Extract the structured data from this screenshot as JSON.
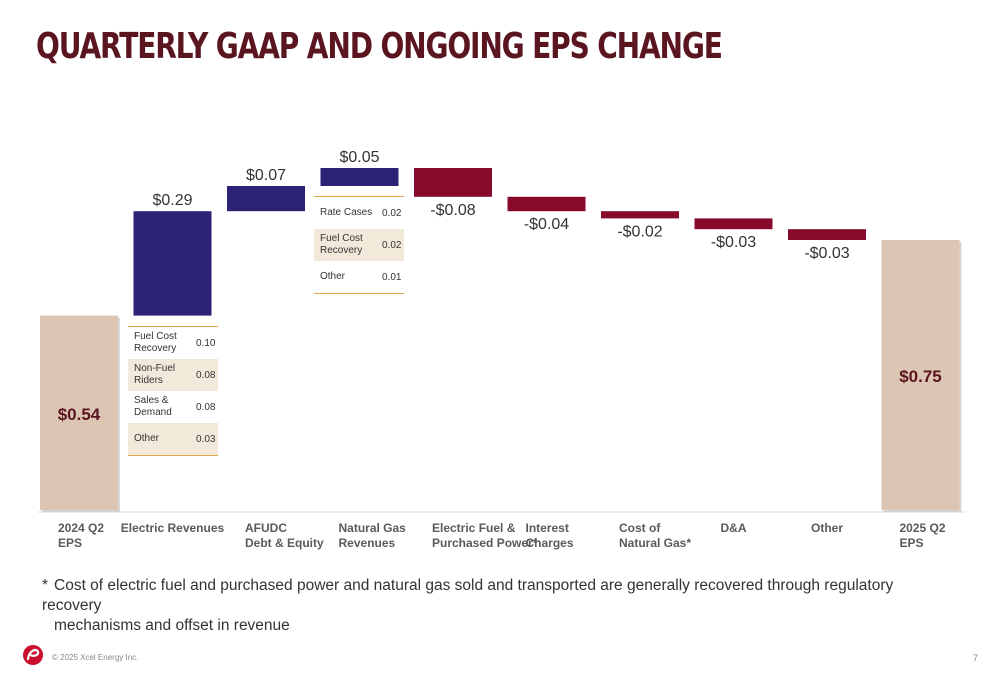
{
  "page": {
    "title": "QUARTERLY GAAP AND ONGOING EPS CHANGE",
    "footnote_mark": "*",
    "footnote_line1": "Cost of electric fuel and purchased power and natural gas sold and transported are generally recovered through regulatory recovery",
    "footnote_line2": "mechanisms and offset in revenue",
    "copyright": "© 2025 Xcel Energy Inc.",
    "page_number": "7",
    "logo_icon": "xcel-energy-logo-icon"
  },
  "colors": {
    "total": "#dcc6b3",
    "increase": "#2c2377",
    "decrease": "#870a2c",
    "breakdown_line": "#e0a64a",
    "breakdown_shade": "#f3e9da"
  },
  "chart_data": {
    "type": "waterfall",
    "title": "",
    "xlabel": "",
    "ylabel": "",
    "ylim": [
      0,
      0.85
    ],
    "categories": [
      [
        "2024 Q2",
        "EPS"
      ],
      [
        "Electric Revenues"
      ],
      [
        "AFUDC",
        "Debt & Equity"
      ],
      [
        "Natural Gas",
        "Revenues"
      ],
      [
        "Electric Fuel &",
        "Purchased Power*"
      ],
      [
        "Interest",
        "Charges"
      ],
      [
        "Cost of",
        "Natural Gas*"
      ],
      [
        "D&A"
      ],
      [
        "Other"
      ],
      [
        "2025 Q2",
        "EPS"
      ]
    ],
    "steps": [
      {
        "kind": "total",
        "value": 0.54,
        "label": "$0.54"
      },
      {
        "kind": "increase",
        "value": 0.29,
        "label": "$0.29"
      },
      {
        "kind": "increase",
        "value": 0.07,
        "label": "$0.07"
      },
      {
        "kind": "increase",
        "value": 0.05,
        "label": "$0.05"
      },
      {
        "kind": "decrease",
        "value": -0.08,
        "label": "-$0.08"
      },
      {
        "kind": "decrease",
        "value": -0.04,
        "label": "-$0.04"
      },
      {
        "kind": "decrease",
        "value": -0.02,
        "label": "-$0.02"
      },
      {
        "kind": "decrease",
        "value": -0.03,
        "label": "-$0.03"
      },
      {
        "kind": "decrease",
        "value": -0.03,
        "label": "-$0.03"
      },
      {
        "kind": "total",
        "value": 0.75,
        "label": "$0.75"
      }
    ],
    "breakdowns": {
      "electric_revenues": [
        {
          "label": "Fuel Cost Recovery",
          "value": "0.10"
        },
        {
          "label": "Non-Fuel Riders",
          "value": "0.08"
        },
        {
          "label": "Sales & Demand",
          "value": "0.08"
        },
        {
          "label": "Other",
          "value": "0.03"
        }
      ],
      "natural_gas_revenues": [
        {
          "label": "Rate Cases",
          "value": "0.02"
        },
        {
          "label": "Fuel Cost Recovery",
          "value": "0.02"
        },
        {
          "label": "Other",
          "value": "0.01"
        }
      ]
    }
  }
}
